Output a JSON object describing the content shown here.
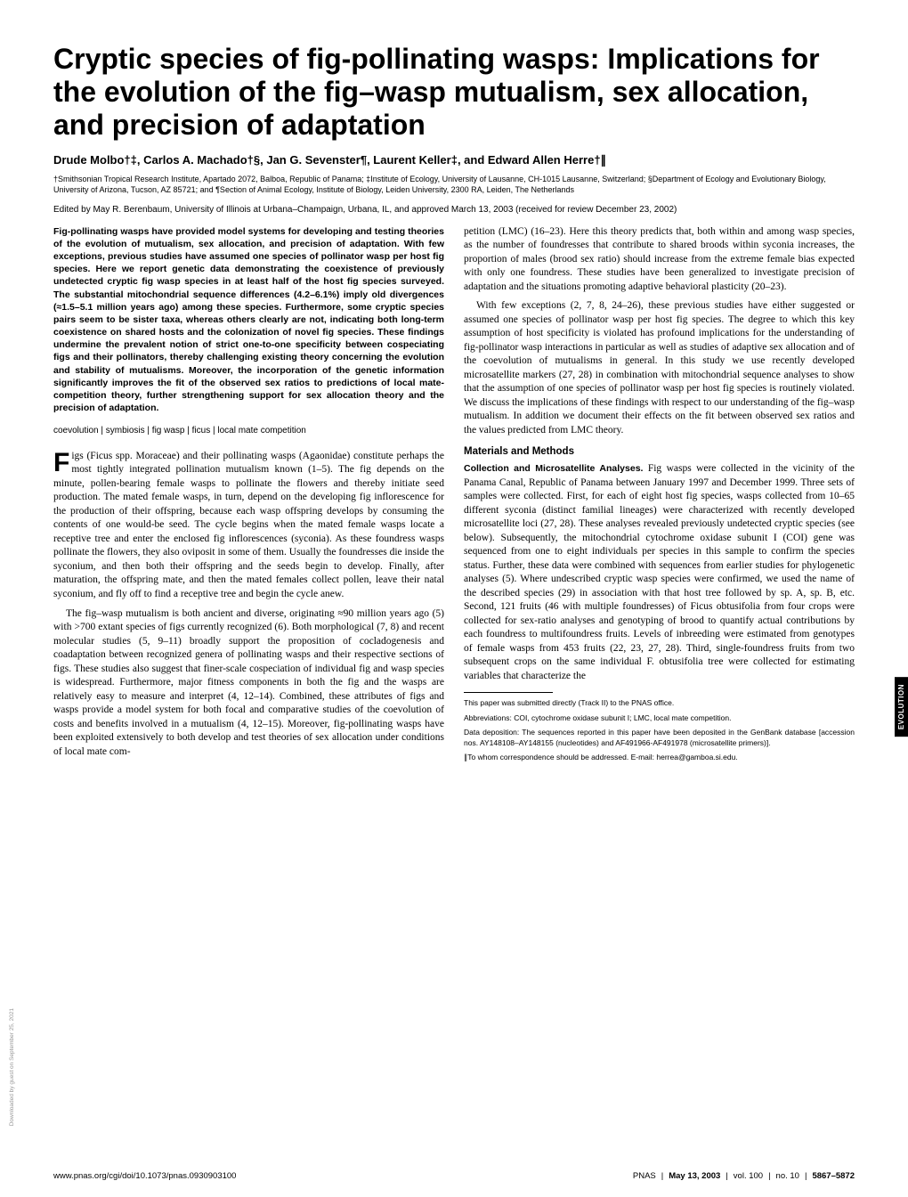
{
  "title": "Cryptic species of fig-pollinating wasps: Implications for the evolution of the fig–wasp mutualism, sex allocation, and precision of adaptation",
  "authors": "Drude Molbo†‡, Carlos A. Machado†§, Jan G. Sevenster¶, Laurent Keller‡, and Edward Allen Herre†∥",
  "affiliations": "†Smithsonian Tropical Research Institute, Apartado 2072, Balboa, Republic of Panama; ‡Institute of Ecology, University of Lausanne, CH-1015 Lausanne, Switzerland; §Department of Ecology and Evolutionary Biology, University of Arizona, Tucson, AZ 85721; and ¶Section of Animal Ecology, Institute of Biology, Leiden University, 2300 RA, Leiden, The Netherlands",
  "edited": "Edited by May R. Berenbaum, University of Illinois at Urbana–Champaign, Urbana, IL, and approved March 13, 2003 (received for review December 23, 2002)",
  "abstract": "Fig-pollinating wasps have provided model systems for developing and testing theories of the evolution of mutualism, sex allocation, and precision of adaptation. With few exceptions, previous studies have assumed one species of pollinator wasp per host fig species. Here we report genetic data demonstrating the coexistence of previously undetected cryptic fig wasp species in at least half of the host fig species surveyed. The substantial mitochondrial sequence differences (4.2–6.1%) imply old divergences (≈1.5–5.1 million years ago) among these species. Furthermore, some cryptic species pairs seem to be sister taxa, whereas others clearly are not, indicating both long-term coexistence on shared hosts and the colonization of novel fig species. These findings undermine the prevalent notion of strict one-to-one specificity between cospeciating figs and their pollinators, thereby challenging existing theory concerning the evolution and stability of mutualisms. Moreover, the incorporation of the genetic information significantly improves the fit of the observed sex ratios to predictions of local mate-competition theory, further strengthening support for sex allocation theory and the precision of adaptation.",
  "keywords": "coevolution | symbiosis | fig wasp | ficus | local mate competition",
  "left": {
    "dropcap": "F",
    "p1_rest": "igs (Ficus spp. Moraceae) and their pollinating wasps (Agaonidae) constitute perhaps the most tightly integrated pollination mutualism known (1–5). The fig depends on the minute, pollen-bearing female wasps to pollinate the flowers and thereby initiate seed production. The mated female wasps, in turn, depend on the developing fig inflorescence for the production of their offspring, because each wasp offspring develops by consuming the contents of one would-be seed. The cycle begins when the mated female wasps locate a receptive tree and enter the enclosed fig inflorescences (syconia). As these foundress wasps pollinate the flowers, they also oviposit in some of them. Usually the foundresses die inside the syconium, and then both their offspring and the seeds begin to develop. Finally, after maturation, the offspring mate, and then the mated females collect pollen, leave their natal syconium, and fly off to find a receptive tree and begin the cycle anew.",
    "p2": "The fig–wasp mutualism is both ancient and diverse, originating ≈90 million years ago (5) with >700 extant species of figs currently recognized (6). Both morphological (7, 8) and recent molecular studies (5, 9–11) broadly support the proposition of cocladogenesis and coadaptation between recognized genera of pollinating wasps and their respective sections of figs. These studies also suggest that finer-scale cospeciation of individual fig and wasp species is widespread. Furthermore, major fitness components in both the fig and the wasps are relatively easy to measure and interpret (4, 12–14). Combined, these attributes of figs and wasps provide a model system for both focal and comparative studies of the coevolution of costs and benefits involved in a mutualism (4, 12–15). Moreover, fig-pollinating wasps have been exploited extensively to both develop and test theories of sex allocation under conditions of local mate com-"
  },
  "right": {
    "p1": "petition (LMC) (16–23). Here this theory predicts that, both within and among wasp species, as the number of foundresses that contribute to shared broods within syconia increases, the proportion of males (brood sex ratio) should increase from the extreme female bias expected with only one foundress. These studies have been generalized to investigate precision of adaptation and the situations promoting adaptive behavioral plasticity (20–23).",
    "p2": "With few exceptions (2, 7, 8, 24–26), these previous studies have either suggested or assumed one species of pollinator wasp per host fig species. The degree to which this key assumption of host specificity is violated has profound implications for the understanding of fig-pollinator wasp interactions in particular as well as studies of adaptive sex allocation and of the coevolution of mutualisms in general. In this study we use recently developed microsatellite markers (27, 28) in combination with mitochondrial sequence analyses to show that the assumption of one species of pollinator wasp per host fig species is routinely violated. We discuss the implications of these findings with respect to our understanding of the fig–wasp mutualism. In addition we document their effects on the fit between observed sex ratios and the values predicted from LMC theory.",
    "mm_heading": "Materials and Methods",
    "mm_sub": "Collection and Microsatellite Analyses.",
    "mm_body": " Fig wasps were collected in the vicinity of the Panama Canal, Republic of Panama between January 1997 and December 1999. Three sets of samples were collected. First, for each of eight host fig species, wasps collected from 10–65 different syconia (distinct familial lineages) were characterized with recently developed microsatellite loci (27, 28). These analyses revealed previously undetected cryptic species (see below). Subsequently, the mitochondrial cytochrome oxidase subunit I (COI) gene was sequenced from one to eight individuals per species in this sample to confirm the species status. Further, these data were combined with sequences from earlier studies for phylogenetic analyses (5). Where undescribed cryptic wasp species were confirmed, we used the name of the described species (29) in association with that host tree followed by sp. A, sp. B, etc. Second, 121 fruits (46 with multiple foundresses) of Ficus obtusifolia from four crops were collected for sex-ratio analyses and genotyping of brood to quantify actual contributions by each foundress to multifoundress fruits. Levels of inbreeding were estimated from genotypes of female wasps from 453 fruits (22, 23, 27, 28). Third, single-foundress fruits from two subsequent crops on the same individual F. obtusifolia tree were collected for estimating variables that characterize the"
  },
  "footnotes": {
    "f1": "This paper was submitted directly (Track II) to the PNAS office.",
    "f2": "Abbreviations: COI, cytochrome oxidase subunit I; LMC, local mate competition.",
    "f3": "Data deposition: The sequences reported in this paper have been deposited in the GenBank database [accession nos. AY148108–AY148155 (nucleotides) and AF491966-AF491978 (microsatellite primers)].",
    "f4": "∥To whom correspondence should be addressed. E-mail: herrea@gamboa.si.edu."
  },
  "footer": {
    "left": "www.pnas.org/cgi/doi/10.1073/pnas.0930903100",
    "right_pnas": "PNAS",
    "right_date": "May 13, 2003",
    "right_vol": "vol. 100",
    "right_no": "no. 10",
    "right_pages": "5867–5872"
  },
  "side_tab": "EVOLUTION",
  "download_note": "Downloaded by guest on September 25, 2021"
}
